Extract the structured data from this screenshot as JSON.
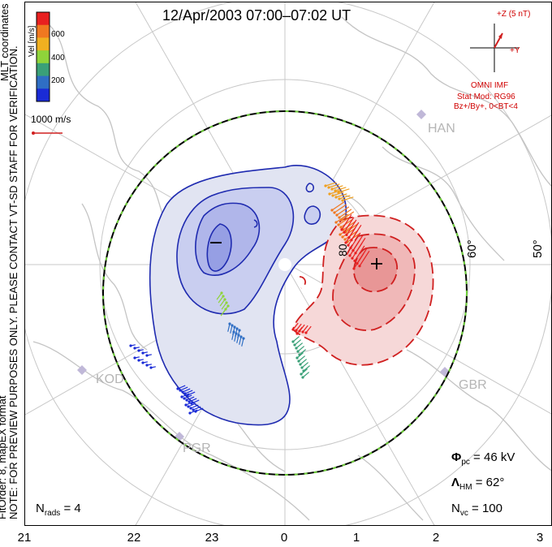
{
  "title": "12/Apr/2003 07:00–07:02 UT",
  "side_note_1": "NOTE: FOR PREVIEW PURPOSES ONLY. PLEASE CONTACT VT-SD STAFF FOR VERIFICATION.",
  "side_note_2": "FitOrder: 8, mapEX format",
  "coord_label": "MLT coordinates",
  "colorbar": {
    "label": "Vel [m/s]",
    "ticks": [
      "600",
      "400",
      "200"
    ],
    "colors": [
      "#1a2bd6",
      "#2f6ec4",
      "#3aa078",
      "#8fd43a",
      "#f0b020",
      "#f07820",
      "#e82020"
    ]
  },
  "ref_vector": "1000 m/s",
  "imf": {
    "z_label": "+Z (5 nT)",
    "y_label": "+Y",
    "source": "OMNI IMF",
    "model": "Stat Mod: RG96",
    "condition": "Bz+/By+, 0<BT<4"
  },
  "lat_labels": [
    "80",
    "60°",
    "50°"
  ],
  "stations": [
    "HAN",
    "KOD",
    "PGR",
    "GBR"
  ],
  "stats": {
    "phi_symbol": "Φ",
    "phi_sub": "pc",
    "phi_value": "= 46 kV",
    "lambda_symbol": "Λ",
    "lambda_sub": "HM",
    "lambda_value": "= 62°",
    "nvc_symbol": "N",
    "nvc_sub": "vc",
    "nvc_value": "= 100",
    "nrads_symbol": "N",
    "nrads_sub": "rads",
    "nrads_value": "= 4"
  },
  "mlt_ticks": [
    "21",
    "22",
    "23",
    "0",
    "1",
    "2",
    "3"
  ],
  "contour_signs": {
    "negative": "–",
    "positive": "+"
  },
  "colors": {
    "negative": "#1f2bb0",
    "positive": "#d02020",
    "boundary": "#6fcf3a"
  }
}
